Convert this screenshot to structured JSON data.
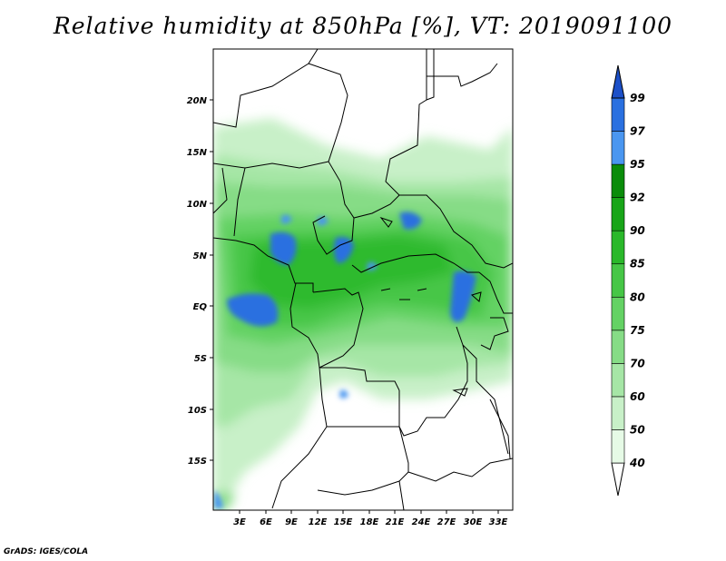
{
  "title": "Relative humidity at 850hPa [%], VT: 2019091100",
  "credit": "GrADS: IGES/COLA",
  "map": {
    "lat_ticks": [
      "20N",
      "15N",
      "10N",
      "5N",
      "EQ",
      "5S",
      "10S",
      "15S"
    ],
    "lon_ticks": [
      "3E",
      "6E",
      "9E",
      "12E",
      "15E",
      "18E",
      "21E",
      "24E",
      "27E",
      "30E",
      "33E"
    ]
  },
  "colorbar": {
    "levels": [
      "40",
      "50",
      "60",
      "70",
      "75",
      "80",
      "85",
      "90",
      "92",
      "95",
      "97",
      "99"
    ],
    "colors": [
      "#ffffff",
      "#e6fae6",
      "#c8f0c8",
      "#a6e6a6",
      "#86dc86",
      "#64d264",
      "#46c646",
      "#2ab82a",
      "#18a518",
      "#0a8c0a",
      "#4a96f0",
      "#2a70e0",
      "#1c50c8"
    ]
  }
}
